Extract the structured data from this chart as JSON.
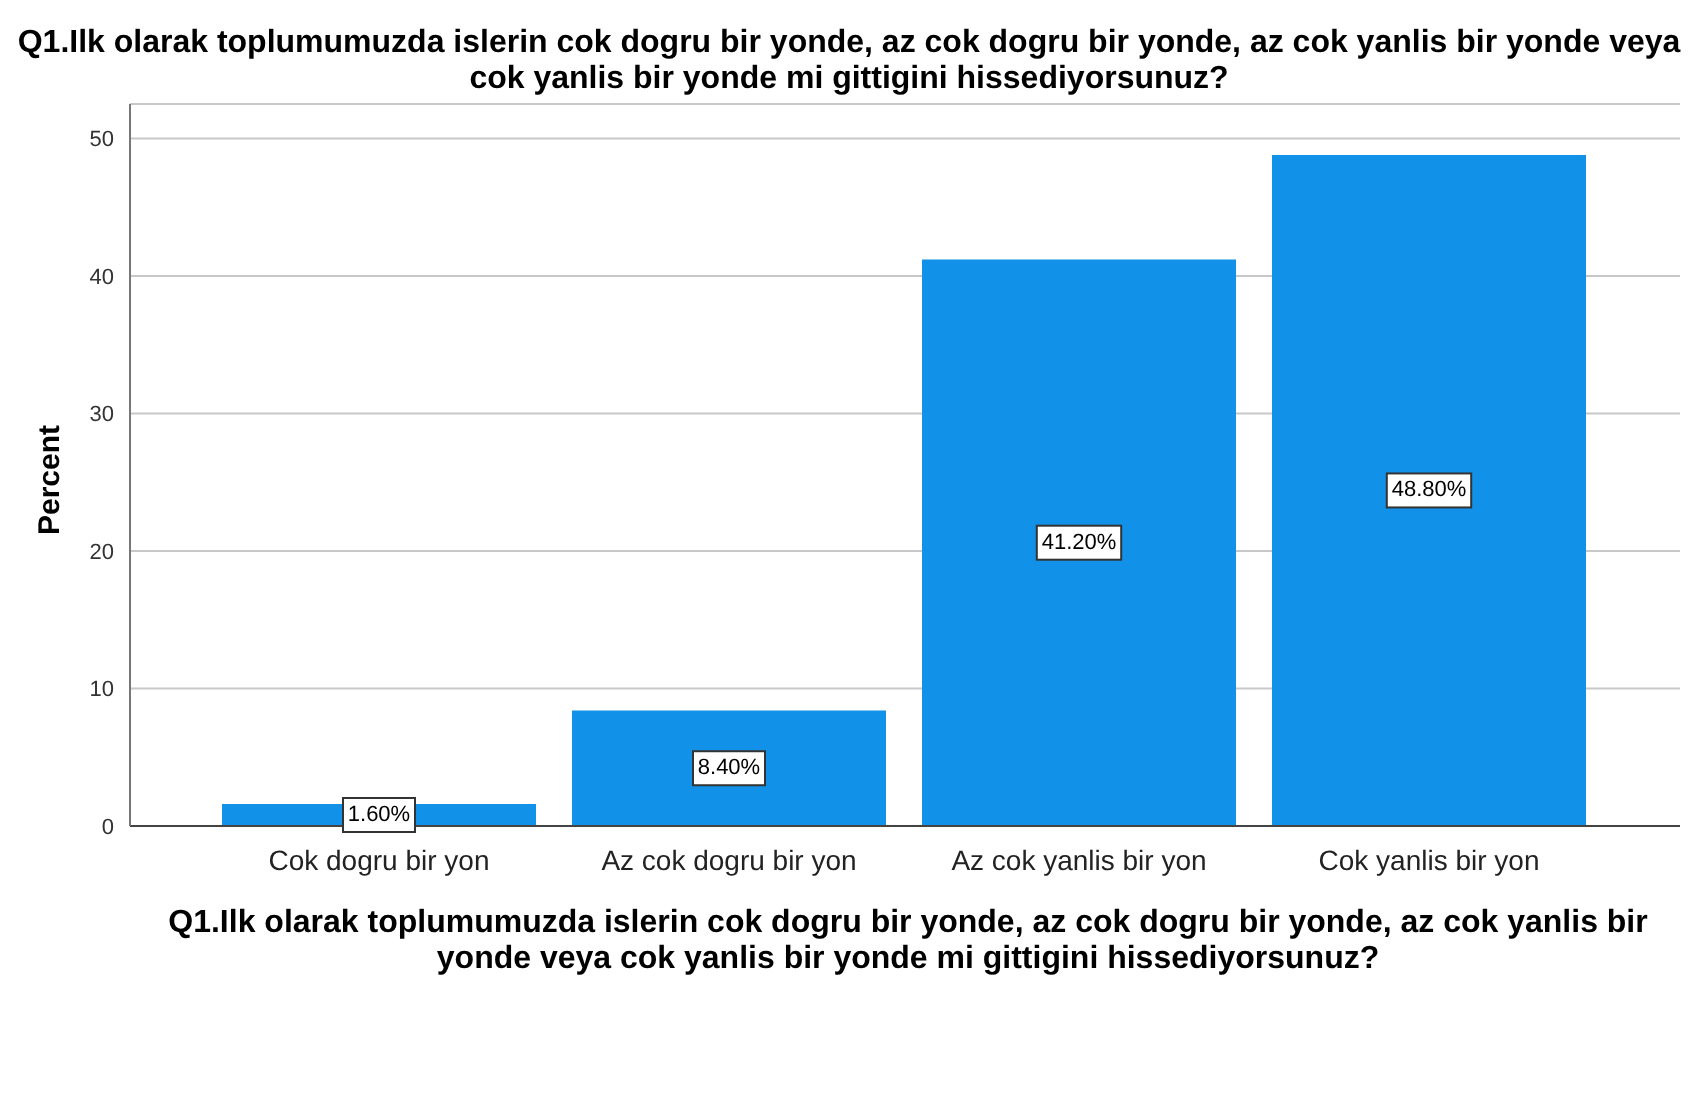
{
  "chart_data": {
    "type": "bar",
    "title": "Q1.Ilk olarak toplumumuzda islerin cok dogru bir yonde, az cok dogru bir yonde, az cok yanlis bir yonde veya cok yanlis bir yonde mi gittigini hissediyorsunuz?",
    "xlabel": "Q1.Ilk olarak toplumumuzda islerin cok dogru bir yonde, az cok dogru bir yonde, az cok yanlis bir yonde veya cok yanlis bir yonde mi gittigini hissediyorsunuz?",
    "ylabel": "Percent",
    "categories": [
      "Cok dogru bir yon",
      "Az cok dogru bir yon",
      "Az cok yanlis bir yon",
      "Cok yanlis bir yon"
    ],
    "values": [
      1.6,
      8.4,
      41.2,
      48.8
    ],
    "value_labels": [
      "1.60%",
      "8.40%",
      "41.20%",
      "48.80%"
    ],
    "color": "#1192e8",
    "ylim": [
      0,
      52.5
    ],
    "yticks": [
      0,
      10,
      20,
      30,
      40,
      50
    ],
    "grid": "y"
  }
}
